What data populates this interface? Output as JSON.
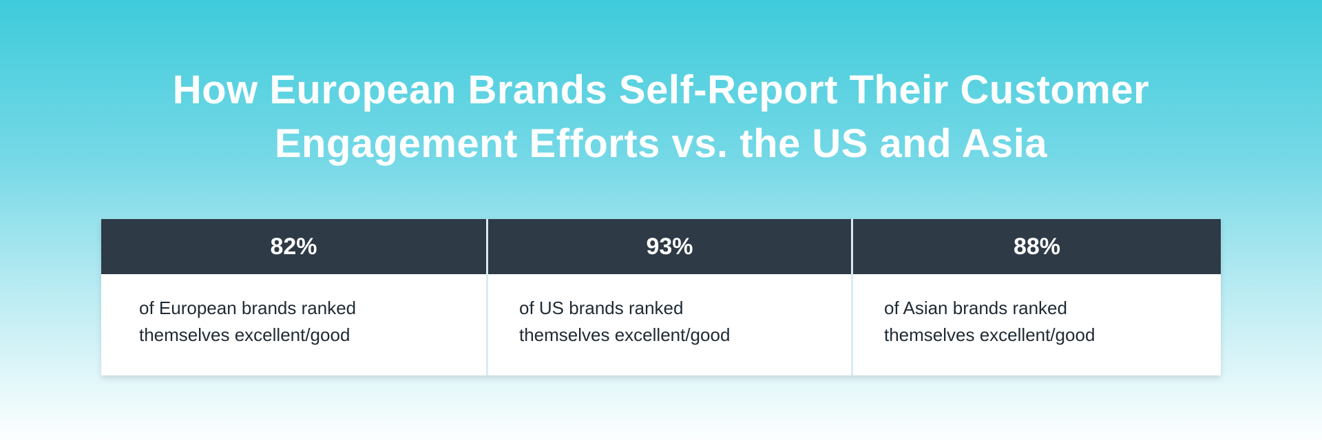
{
  "title": {
    "line1": "How European Brands Self-Report Their Customer",
    "line2": "Engagement Efforts vs. the US and Asia"
  },
  "chart_data": {
    "type": "table",
    "title": "How European Brands Self-Report Their Customer Engagement Efforts vs. the US and Asia",
    "columns": [
      {
        "value": "82%",
        "line1": "of European brands ranked",
        "line2": "themselves excellent/good"
      },
      {
        "value": "93%",
        "line1": "of US brands ranked",
        "line2": "themselves excellent/good"
      },
      {
        "value": "88%",
        "line1": "of Asian brands ranked",
        "line2": "themselves excellent/good"
      }
    ]
  },
  "colors": {
    "header_bg": "#2e3a46",
    "gradient_top": "#3ecbdb",
    "gradient_bottom": "#ffffff"
  }
}
